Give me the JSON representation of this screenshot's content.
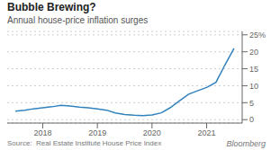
{
  "chart_data": {
    "type": "line",
    "title": "Bubble Brewing?",
    "subtitle": "Annual house-price inflation surges",
    "annotations": [
      "Source:  Real Estate Institute House Price Index",
      "Bloomberg"
    ],
    "x": [
      2017.5,
      2017.67,
      2017.83,
      2018.0,
      2018.17,
      2018.33,
      2018.5,
      2018.67,
      2018.83,
      2019.0,
      2019.17,
      2019.33,
      2019.5,
      2019.67,
      2019.83,
      2020.0,
      2020.17,
      2020.33,
      2020.5,
      2020.67,
      2020.83,
      2021.0,
      2021.17,
      2021.33,
      2021.5
    ],
    "values": [
      2.5,
      2.8,
      3.2,
      3.5,
      3.8,
      4.2,
      4.0,
      3.7,
      3.5,
      3.2,
      2.8,
      2.0,
      1.5,
      1.3,
      1.2,
      1.4,
      2.0,
      3.5,
      5.5,
      7.5,
      8.5,
      9.5,
      11.0,
      16.0,
      21.0
    ],
    "xlim": [
      2017.35,
      2021.65
    ],
    "xticks": [
      2018,
      2019,
      2020,
      2021
    ],
    "ylim": [
      -1,
      26
    ],
    "yticks": [
      0,
      5,
      10,
      15,
      20,
      {
        "value": 25,
        "label": "25%"
      }
    ],
    "grid": "y"
  }
}
